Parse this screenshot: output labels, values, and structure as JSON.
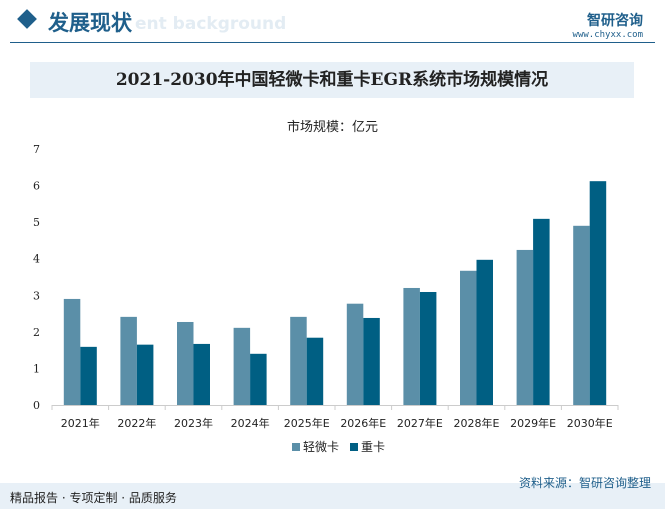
{
  "header": {
    "title": "发展现状",
    "ghost": "ent background",
    "logo_name": "智研咨询",
    "logo_url": "www.chyxx.com"
  },
  "footer": {
    "left": "精品报告 · 专项定制 · 品质服务",
    "source": "资料来源：智研咨询整理"
  },
  "colors": {
    "light": "#5b8fa8",
    "dark": "#005f83",
    "accent": "#1f5f8b"
  },
  "chart_data": {
    "type": "bar",
    "title": "2021-2030年中国轻微卡和重卡EGR系统市场规模情况",
    "unit_label": "市场规模：亿元",
    "categories": [
      "2021年",
      "2022年",
      "2023年",
      "2024年",
      "2025年E",
      "2026年E",
      "2027年E",
      "2028年E",
      "2029年E",
      "2030年E"
    ],
    "series": [
      {
        "name": "轻微卡",
        "values": [
          2.9,
          2.41,
          2.27,
          2.11,
          2.41,
          2.77,
          3.2,
          3.67,
          4.24,
          4.9
        ]
      },
      {
        "name": "重卡",
        "values": [
          1.59,
          1.65,
          1.67,
          1.4,
          1.84,
          2.38,
          3.09,
          3.97,
          5.09,
          6.12
        ]
      }
    ],
    "yticks": [
      0,
      1,
      2,
      3,
      4,
      5,
      6,
      7
    ],
    "ylim": [
      0,
      7
    ],
    "grid": false,
    "legend": "bottom"
  }
}
